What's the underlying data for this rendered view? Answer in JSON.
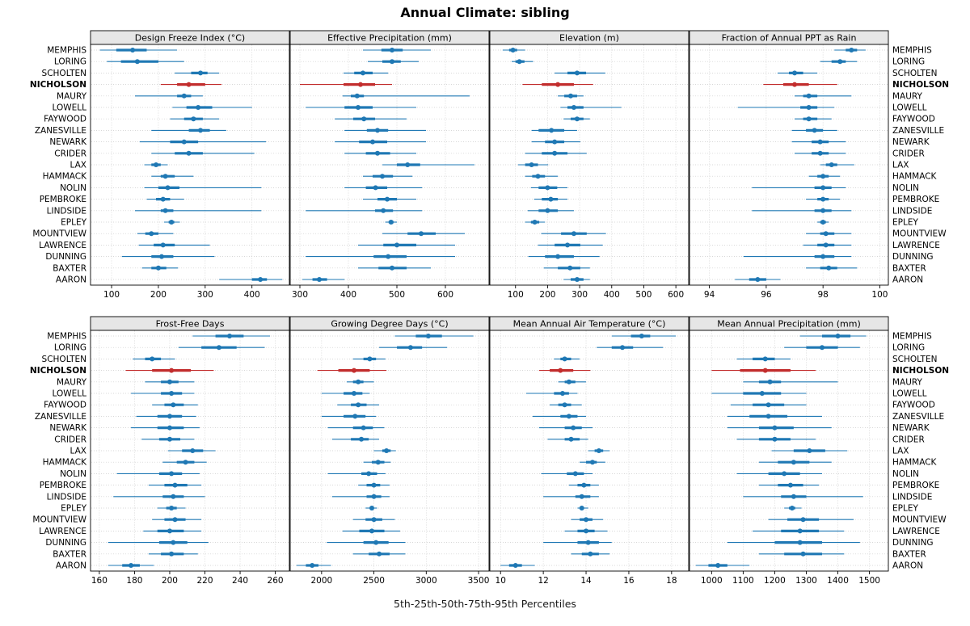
{
  "title": "Annual Climate: sibling",
  "footer": "5th-25th-50th-75th-95th Percentiles",
  "highlight_station": "NICHOLSON",
  "percentiles": [
    "5th",
    "25th",
    "50th",
    "75th",
    "95th"
  ],
  "colors": {
    "series": "#1f78b4",
    "highlight": "#c22d2d",
    "header_bg": "#e6e6e6",
    "grid": "#cccccc",
    "border": "#000000"
  },
  "stations": [
    "MEMPHIS",
    "LORING",
    "SCHOLTEN",
    "NICHOLSON",
    "MAURY",
    "LOWELL",
    "FAYWOOD",
    "ZANESVILLE",
    "NEWARK",
    "CRIDER",
    "LAX",
    "HAMMACK",
    "NOLIN",
    "PEMBROKE",
    "LINDSIDE",
    "EPLEY",
    "MOUNTVIEW",
    "LAWRENCE",
    "DUNNING",
    "BAXTER",
    "AARON"
  ],
  "chart_data": [
    {
      "type": "dotplot",
      "title": "Design Freeze Index (°C)",
      "xlim": [
        55,
        480
      ],
      "ticks": [
        100,
        200,
        300,
        400
      ],
      "percentile_values": [
        [
          75,
          110,
          145,
          175,
          240
        ],
        [
          90,
          120,
          155,
          200,
          255
        ],
        [
          235,
          270,
          290,
          305,
          330
        ],
        [
          205,
          240,
          265,
          300,
          335
        ],
        [
          150,
          240,
          255,
          270,
          295
        ],
        [
          230,
          260,
          285,
          315,
          400
        ],
        [
          225,
          255,
          275,
          295,
          330
        ],
        [
          185,
          265,
          290,
          310,
          345
        ],
        [
          160,
          225,
          255,
          285,
          430
        ],
        [
          185,
          235,
          265,
          295,
          405
        ],
        [
          170,
          185,
          195,
          205,
          220
        ],
        [
          185,
          205,
          215,
          235,
          275
        ],
        [
          170,
          200,
          220,
          245,
          420
        ],
        [
          175,
          195,
          210,
          225,
          255
        ],
        [
          150,
          205,
          215,
          232,
          420
        ],
        [
          212,
          222,
          228,
          234,
          246
        ],
        [
          155,
          172,
          185,
          200,
          232
        ],
        [
          158,
          190,
          210,
          235,
          310
        ],
        [
          122,
          185,
          207,
          232,
          320
        ],
        [
          165,
          185,
          200,
          217,
          242
        ],
        [
          330,
          400,
          418,
          432,
          465
        ]
      ]
    },
    {
      "type": "dotplot",
      "title": "Effective Precipitation (mm)",
      "xlim": [
        280,
        690
      ],
      "ticks": [
        300,
        400,
        500,
        600
      ],
      "percentile_values": [
        [
          430,
          468,
          490,
          512,
          570
        ],
        [
          440,
          470,
          490,
          508,
          545
        ],
        [
          390,
          412,
          430,
          450,
          482
        ],
        [
          300,
          390,
          425,
          455,
          490
        ],
        [
          388,
          405,
          418,
          432,
          650
        ],
        [
          312,
          392,
          420,
          450,
          540
        ],
        [
          372,
          410,
          432,
          455,
          520
        ],
        [
          392,
          438,
          460,
          482,
          560
        ],
        [
          372,
          422,
          450,
          480,
          560
        ],
        [
          392,
          436,
          460,
          486,
          540
        ],
        [
          470,
          500,
          522,
          548,
          660
        ],
        [
          430,
          450,
          470,
          492,
          532
        ],
        [
          392,
          436,
          456,
          480,
          552
        ],
        [
          430,
          460,
          480,
          500,
          540
        ],
        [
          312,
          455,
          472,
          492,
          552
        ],
        [
          476,
          483,
          488,
          493,
          500
        ],
        [
          470,
          522,
          550,
          580,
          640
        ],
        [
          420,
          472,
          500,
          540,
          620
        ],
        [
          312,
          452,
          482,
          520,
          620
        ],
        [
          420,
          462,
          490,
          520,
          570
        ],
        [
          305,
          326,
          340,
          356,
          392
        ]
      ]
    },
    {
      "type": "dotplot",
      "title": "Elevation (m)",
      "xlim": [
        20,
        640
      ],
      "ticks": [
        100,
        200,
        300,
        400,
        500,
        600
      ],
      "percentile_values": [
        [
          60,
          80,
          92,
          105,
          130
        ],
        [
          88,
          100,
          112,
          128,
          155
        ],
        [
          222,
          262,
          292,
          320,
          380
        ],
        [
          122,
          182,
          232,
          282,
          342
        ],
        [
          232,
          252,
          272,
          292,
          312
        ],
        [
          240,
          262,
          282,
          312,
          430
        ],
        [
          250,
          272,
          292,
          312,
          332
        ],
        [
          150,
          172,
          212,
          252,
          292
        ],
        [
          150,
          192,
          222,
          252,
          302
        ],
        [
          130,
          182,
          222,
          262,
          322
        ],
        [
          108,
          130,
          150,
          170,
          202
        ],
        [
          130,
          152,
          170,
          192,
          232
        ],
        [
          148,
          172,
          200,
          230,
          262
        ],
        [
          158,
          182,
          210,
          232,
          262
        ],
        [
          138,
          172,
          200,
          232,
          282
        ],
        [
          130,
          148,
          160,
          174,
          192
        ],
        [
          180,
          242,
          282,
          322,
          382
        ],
        [
          170,
          222,
          262,
          302,
          372
        ],
        [
          140,
          192,
          232,
          282,
          362
        ],
        [
          188,
          232,
          270,
          302,
          332
        ],
        [
          250,
          272,
          292,
          312,
          332
        ]
      ]
    },
    {
      "type": "dotplot",
      "title": "Fraction of Annual PPT as Rain",
      "xlim": [
        93.3,
        100.3
      ],
      "ticks": [
        94,
        96,
        98,
        100
      ],
      "percentile_values": [
        [
          98.4,
          98.8,
          99.0,
          99.2,
          99.5
        ],
        [
          97.9,
          98.3,
          98.6,
          98.8,
          99.2
        ],
        [
          96.4,
          96.8,
          97.0,
          97.3,
          97.8
        ],
        [
          95.9,
          96.6,
          97.0,
          97.5,
          98.5
        ],
        [
          97.0,
          97.3,
          97.5,
          97.8,
          99.0
        ],
        [
          95.0,
          97.2,
          97.5,
          97.8,
          98.4
        ],
        [
          97.0,
          97.3,
          97.5,
          97.8,
          98.3
        ],
        [
          96.9,
          97.4,
          97.7,
          98.0,
          98.5
        ],
        [
          96.9,
          97.6,
          97.9,
          98.2,
          98.8
        ],
        [
          97.0,
          97.6,
          97.9,
          98.2,
          98.8
        ],
        [
          97.9,
          98.1,
          98.3,
          98.5,
          99.1
        ],
        [
          97.5,
          97.8,
          98.0,
          98.2,
          98.6
        ],
        [
          95.5,
          97.7,
          98.0,
          98.3,
          98.8
        ],
        [
          97.4,
          97.8,
          98.0,
          98.2,
          98.6
        ],
        [
          95.5,
          97.7,
          98.0,
          98.3,
          99.0
        ],
        [
          97.8,
          97.9,
          98.0,
          98.1,
          98.2
        ],
        [
          97.4,
          97.9,
          98.1,
          98.4,
          99.0
        ],
        [
          97.3,
          97.8,
          98.1,
          98.4,
          99.0
        ],
        [
          95.2,
          97.7,
          98.0,
          98.4,
          99.0
        ],
        [
          97.4,
          97.9,
          98.2,
          98.5,
          99.2
        ],
        [
          94.9,
          95.4,
          95.7,
          96.0,
          96.5
        ]
      ]
    },
    {
      "type": "dotplot",
      "title": "Frost-Free Days",
      "xlim": [
        155,
        268
      ],
      "ticks": [
        160,
        180,
        200,
        220,
        240,
        260
      ],
      "percentile_values": [
        [
          213,
          226,
          234,
          242,
          257
        ],
        [
          205,
          218,
          228,
          238,
          254
        ],
        [
          179,
          186,
          190,
          195,
          203
        ],
        [
          175,
          190,
          201,
          212,
          225
        ],
        [
          186,
          195,
          200,
          205,
          214
        ],
        [
          178,
          195,
          201,
          207,
          214
        ],
        [
          190,
          197,
          202,
          208,
          216
        ],
        [
          181,
          193,
          200,
          207,
          215
        ],
        [
          178,
          193,
          200,
          208,
          217
        ],
        [
          184,
          194,
          200,
          206,
          214
        ],
        [
          199,
          207,
          213,
          219,
          226
        ],
        [
          196,
          204,
          209,
          214,
          221
        ],
        [
          170,
          194,
          201,
          207,
          217
        ],
        [
          188,
          197,
          203,
          210,
          218
        ],
        [
          168,
          196,
          202,
          208,
          220
        ],
        [
          193,
          198,
          201,
          204,
          209
        ],
        [
          190,
          197,
          203,
          209,
          218
        ],
        [
          185,
          193,
          200,
          208,
          218
        ],
        [
          165,
          194,
          202,
          210,
          222
        ],
        [
          188,
          195,
          201,
          208,
          216
        ],
        [
          165,
          173,
          178,
          183,
          191
        ]
      ]
    },
    {
      "type": "dotplot",
      "title": "Growing Degree Days (°C)",
      "xlim": [
        1700,
        3600
      ],
      "ticks": [
        2000,
        2500,
        3000,
        3500
      ],
      "percentile_values": [
        [
          2700,
          2900,
          3020,
          3150,
          3450
        ],
        [
          2550,
          2720,
          2850,
          2960,
          3200
        ],
        [
          2300,
          2400,
          2460,
          2520,
          2610
        ],
        [
          1960,
          2160,
          2310,
          2460,
          2620
        ],
        [
          2240,
          2300,
          2350,
          2400,
          2500
        ],
        [
          2000,
          2210,
          2310,
          2390,
          2460
        ],
        [
          2150,
          2280,
          2350,
          2430,
          2550
        ],
        [
          2000,
          2210,
          2320,
          2420,
          2520
        ],
        [
          2060,
          2300,
          2400,
          2490,
          2600
        ],
        [
          2100,
          2280,
          2380,
          2450,
          2550
        ],
        [
          2500,
          2580,
          2620,
          2660,
          2710
        ],
        [
          2400,
          2480,
          2540,
          2600,
          2660
        ],
        [
          2060,
          2380,
          2450,
          2530,
          2610
        ],
        [
          2350,
          2430,
          2500,
          2560,
          2650
        ],
        [
          2100,
          2430,
          2500,
          2570,
          2650
        ],
        [
          2420,
          2460,
          2480,
          2500,
          2530
        ],
        [
          2300,
          2420,
          2500,
          2580,
          2700
        ],
        [
          2200,
          2360,
          2480,
          2600,
          2750
        ],
        [
          2050,
          2400,
          2520,
          2640,
          2800
        ],
        [
          2300,
          2450,
          2550,
          2650,
          2800
        ],
        [
          1760,
          1850,
          1910,
          1970,
          2090
        ]
      ]
    },
    {
      "type": "dotplot",
      "title": "Mean Annual Air Temperature (°C)",
      "xlim": [
        9.5,
        18.8
      ],
      "ticks": [
        10,
        12,
        14,
        16,
        18
      ],
      "percentile_values": [
        [
          15.2,
          16.1,
          16.6,
          17.0,
          18.2
        ],
        [
          14.5,
          15.2,
          15.7,
          16.2,
          17.6
        ],
        [
          12.5,
          12.8,
          13.0,
          13.3,
          13.7
        ],
        [
          11.8,
          12.3,
          12.8,
          13.4,
          14.2
        ],
        [
          12.7,
          13.0,
          13.2,
          13.5,
          14.0
        ],
        [
          11.2,
          12.5,
          12.9,
          13.2,
          13.6
        ],
        [
          12.3,
          12.7,
          13.0,
          13.3,
          13.8
        ],
        [
          11.5,
          12.8,
          13.2,
          13.6,
          14.0
        ],
        [
          11.8,
          13.0,
          13.4,
          13.8,
          14.3
        ],
        [
          12.2,
          13.0,
          13.3,
          13.7,
          14.1
        ],
        [
          14.1,
          14.4,
          14.6,
          14.8,
          15.1
        ],
        [
          13.7,
          14.0,
          14.3,
          14.5,
          14.9
        ],
        [
          11.9,
          13.1,
          13.5,
          13.9,
          14.3
        ],
        [
          13.2,
          13.6,
          13.9,
          14.2,
          14.6
        ],
        [
          12.0,
          13.5,
          13.8,
          14.2,
          14.6
        ],
        [
          13.6,
          13.7,
          13.8,
          13.9,
          14.1
        ],
        [
          13.3,
          13.7,
          14.0,
          14.3,
          14.8
        ],
        [
          13.0,
          13.6,
          14.0,
          14.4,
          15.0
        ],
        [
          12.0,
          13.6,
          14.1,
          14.6,
          15.2
        ],
        [
          13.3,
          13.8,
          14.2,
          14.6,
          15.1
        ],
        [
          10.0,
          10.4,
          10.7,
          11.0,
          11.6
        ]
      ]
    },
    {
      "type": "dotplot",
      "title": "Mean Annual Precipitation (mm)",
      "xlim": [
        930,
        1560
      ],
      "ticks": [
        1000,
        1100,
        1200,
        1300,
        1400,
        1500
      ],
      "percentile_values": [
        [
          1280,
          1350,
          1400,
          1440,
          1490
        ],
        [
          1230,
          1300,
          1350,
          1400,
          1470
        ],
        [
          1080,
          1130,
          1170,
          1200,
          1250
        ],
        [
          1000,
          1090,
          1170,
          1250,
          1330
        ],
        [
          1100,
          1150,
          1185,
          1220,
          1400
        ],
        [
          1000,
          1100,
          1160,
          1220,
          1300
        ],
        [
          1060,
          1130,
          1180,
          1230,
          1300
        ],
        [
          1050,
          1120,
          1180,
          1240,
          1350
        ],
        [
          1050,
          1150,
          1200,
          1260,
          1380
        ],
        [
          1080,
          1150,
          1200,
          1250,
          1330
        ],
        [
          1190,
          1260,
          1310,
          1360,
          1430
        ],
        [
          1150,
          1210,
          1260,
          1310,
          1380
        ],
        [
          1080,
          1180,
          1230,
          1280,
          1350
        ],
        [
          1150,
          1210,
          1250,
          1290,
          1340
        ],
        [
          1100,
          1220,
          1260,
          1300,
          1480
        ],
        [
          1230,
          1245,
          1255,
          1265,
          1285
        ],
        [
          1180,
          1240,
          1290,
          1340,
          1450
        ],
        [
          1130,
          1220,
          1280,
          1340,
          1420
        ],
        [
          1050,
          1200,
          1280,
          1350,
          1470
        ],
        [
          1150,
          1230,
          1290,
          1350,
          1420
        ],
        [
          950,
          990,
          1020,
          1050,
          1120
        ]
      ]
    }
  ]
}
